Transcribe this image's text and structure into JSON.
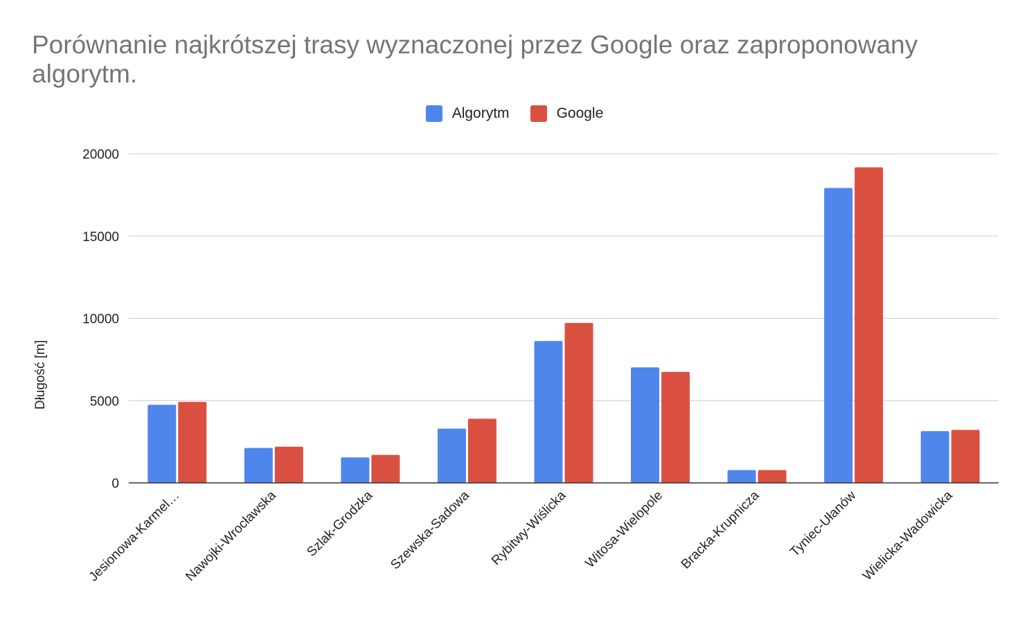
{
  "chart_data": {
    "type": "bar",
    "title": "Porównanie najkrótszej trasy wyznaczonej przez Google oraz zaproponowany algorytm.",
    "xlabel": "",
    "ylabel": "Długość [m]",
    "ylim": [
      0,
      20000
    ],
    "yticks": [
      0,
      5000,
      10000,
      15000,
      20000
    ],
    "ytick_labels": [
      "0",
      "5000",
      "10000",
      "15000",
      "20000"
    ],
    "grid": true,
    "legend_position": "top-center",
    "categories": [
      "Jesionowa-Karmel…",
      "Nawojki-Wrocławska",
      "Szlak-Grodzka",
      "Szewska-Sadowa",
      "Rybitwy-Wiślicka",
      "Witosa-Wielopole",
      "Bracka-Krupnicza",
      "Tyniec-Ułanów",
      "Wielicka-Wadowicka"
    ],
    "series": [
      {
        "name": "Algorytm",
        "color": "#4f86ec",
        "values": [
          4750,
          2120,
          1550,
          3300,
          8620,
          7020,
          780,
          17920,
          3150
        ]
      },
      {
        "name": "Google",
        "color": "#d95040",
        "values": [
          4920,
          2200,
          1700,
          3900,
          9720,
          6750,
          780,
          19180,
          3220
        ]
      }
    ]
  }
}
